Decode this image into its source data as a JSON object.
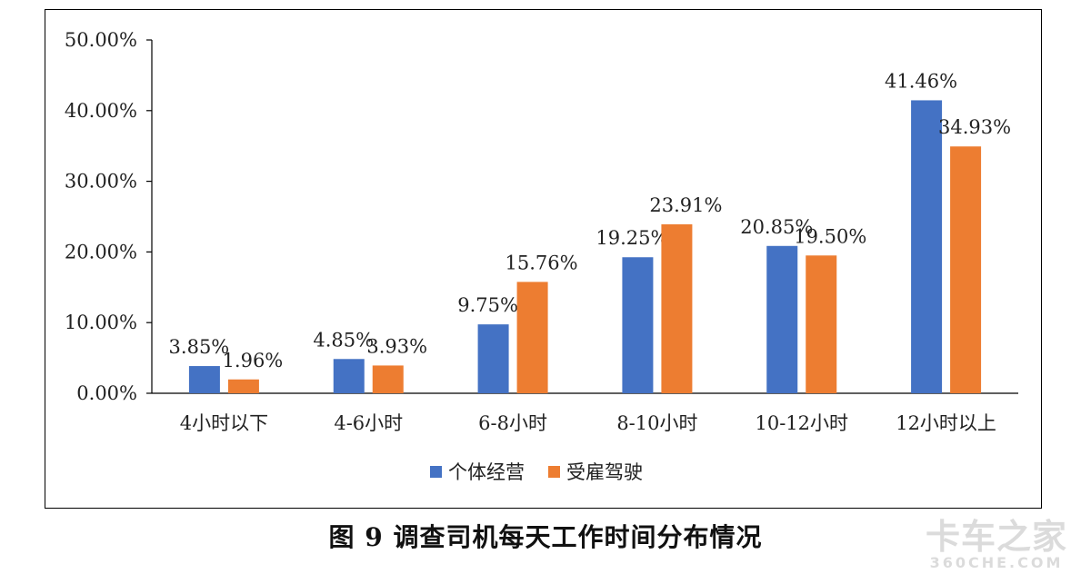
{
  "caption": "图 9  调查司机每天工作时间分布情况",
  "watermark": {
    "main": "卡车之家",
    "sub": "360CHE.COM"
  },
  "chart_data": {
    "type": "bar",
    "categories": [
      "4小时以下",
      "4-6小时",
      "6-8小时",
      "8-10小时",
      "10-12小时",
      "12小时以上"
    ],
    "series": [
      {
        "name": "个体经营",
        "values": [
          3.85,
          4.85,
          9.75,
          19.25,
          20.85,
          41.46
        ],
        "labels": [
          "3.85%",
          "4.85%",
          "9.75%",
          "19.25%",
          "20.85%",
          "41.46%"
        ],
        "color": "#4472C4"
      },
      {
        "name": "受雇驾驶",
        "values": [
          1.96,
          3.93,
          15.76,
          23.91,
          19.5,
          34.93
        ],
        "labels": [
          "1.96%",
          "3.93%",
          "15.76%",
          "23.91%",
          "19.50%",
          "34.93%"
        ],
        "color": "#ED7D31"
      }
    ],
    "yticks": [
      "0.00%",
      "10.00%",
      "20.00%",
      "30.00%",
      "40.00%",
      "50.00%"
    ],
    "ylim": [
      0,
      50
    ],
    "legend_position": "bottom",
    "grid": false
  }
}
